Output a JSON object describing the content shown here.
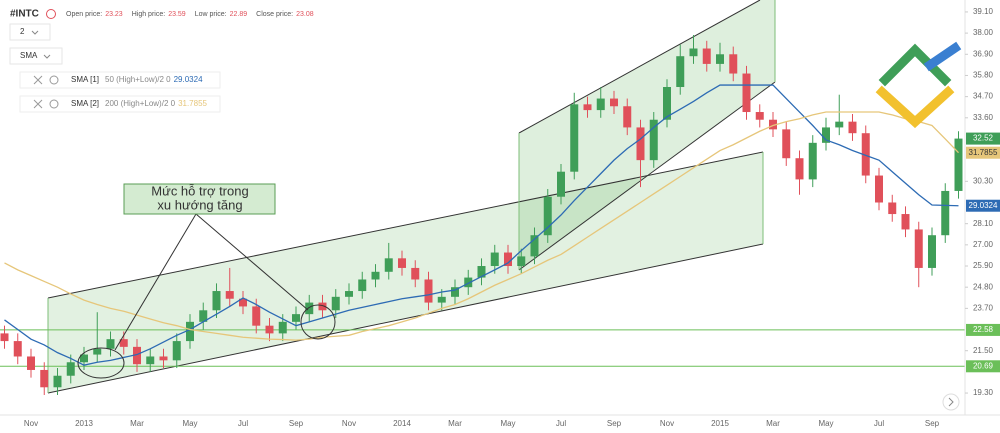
{
  "chart_data": {
    "type": "candlestick",
    "title": "#INTC",
    "ohlc_header": [
      {
        "label": "Open price:",
        "value": 23.23
      },
      {
        "label": "High price:",
        "value": 23.59
      },
      {
        "label": "Low price:",
        "value": 22.89
      },
      {
        "label": "Close price:",
        "value": 23.08
      }
    ],
    "period": "2",
    "indicator_select": "SMA",
    "up_color": "#3f9e58",
    "down_color": "#e0505a",
    "categories": [
      null,
      null,
      "Nov",
      null,
      null,
      null,
      "2013",
      null,
      null,
      null,
      "Mar",
      null,
      null,
      null,
      "May",
      null,
      null,
      null,
      "Jul",
      null,
      null,
      null,
      "Sep",
      null,
      null,
      null,
      "Nov",
      null,
      null,
      null,
      "2014",
      null,
      null,
      null,
      "Mar",
      null,
      null,
      null,
      "May",
      null,
      null,
      null,
      "Jul",
      null,
      null,
      null,
      "Sep",
      null,
      null,
      null,
      "Nov",
      null,
      null,
      null,
      "2015",
      null,
      null,
      null,
      "Mar",
      null,
      null,
      null,
      "May",
      null,
      null,
      null,
      "Jul",
      null,
      null,
      null,
      "Sep",
      null,
      null
    ],
    "open": [
      22.4,
      22.0,
      21.2,
      20.5,
      19.6,
      20.2,
      20.9,
      21.3,
      21.6,
      22.1,
      21.7,
      20.8,
      21.2,
      21.0,
      22.0,
      23.0,
      23.6,
      24.6,
      24.2,
      23.8,
      22.8,
      22.4,
      23.0,
      23.4,
      24.0,
      23.6,
      24.3,
      24.6,
      25.2,
      25.6,
      26.3,
      25.8,
      25.2,
      24.0,
      24.3,
      24.8,
      25.3,
      25.9,
      26.6,
      25.9,
      26.4,
      27.5,
      29.5,
      30.8,
      34.3,
      34.0,
      34.6,
      34.2,
      33.1,
      31.4,
      33.5,
      35.2,
      36.8,
      37.2,
      36.4,
      36.9,
      35.9,
      33.9,
      33.5,
      33.0,
      31.5,
      30.4,
      32.3,
      33.1,
      33.4,
      32.8,
      30.6,
      29.2,
      28.6,
      27.8,
      25.8,
      27.5,
      29.8
    ],
    "high": [
      22.8,
      22.4,
      21.6,
      20.9,
      20.6,
      21.3,
      21.7,
      23.5,
      22.5,
      22.5,
      22.1,
      21.6,
      21.6,
      22.4,
      23.4,
      24.0,
      25.0,
      25.8,
      24.6,
      24.2,
      23.2,
      23.4,
      23.8,
      24.4,
      24.4,
      24.7,
      25.0,
      25.6,
      26.0,
      27.1,
      26.7,
      26.2,
      25.6,
      24.7,
      25.2,
      25.7,
      26.3,
      27.0,
      27.0,
      26.8,
      27.9,
      29.9,
      31.2,
      34.9,
      34.7,
      35.2,
      35.0,
      34.6,
      33.5,
      33.9,
      35.6,
      37.4,
      37.9,
      37.6,
      37.5,
      37.3,
      36.3,
      34.3,
      33.9,
      33.4,
      31.9,
      32.7,
      33.6,
      34.8,
      33.8,
      33.2,
      31.0,
      29.6,
      29.0,
      28.2,
      27.9,
      30.2,
      32.9
    ],
    "low": [
      21.6,
      20.8,
      20.1,
      19.2,
      19.2,
      19.8,
      20.5,
      20.9,
      21.2,
      21.3,
      20.4,
      20.4,
      20.6,
      20.6,
      21.6,
      22.6,
      23.2,
      23.8,
      23.4,
      22.4,
      22.0,
      22.0,
      22.6,
      23.0,
      23.2,
      23.2,
      23.9,
      24.2,
      24.8,
      25.2,
      25.4,
      24.8,
      23.6,
      23.6,
      23.9,
      24.4,
      24.9,
      25.5,
      25.5,
      25.5,
      26.0,
      27.1,
      29.1,
      30.4,
      33.6,
      33.6,
      33.8,
      32.7,
      30.0,
      31.0,
      33.1,
      34.8,
      36.4,
      36.0,
      36.0,
      35.5,
      33.5,
      33.1,
      32.6,
      31.1,
      29.6,
      30.0,
      31.9,
      32.7,
      32.4,
      30.2,
      28.8,
      28.2,
      27.4,
      24.8,
      25.4,
      27.1,
      29.4
    ],
    "close": [
      22.0,
      21.2,
      20.5,
      19.6,
      20.2,
      20.9,
      21.3,
      21.6,
      22.1,
      21.7,
      20.8,
      21.2,
      21.0,
      22.0,
      23.0,
      23.6,
      24.6,
      24.2,
      23.8,
      22.8,
      22.4,
      23.0,
      23.4,
      24.0,
      23.6,
      24.3,
      24.6,
      25.2,
      25.6,
      26.3,
      25.8,
      25.2,
      24.0,
      24.3,
      24.8,
      25.3,
      25.9,
      26.6,
      25.9,
      26.4,
      27.5,
      29.5,
      30.8,
      34.3,
      34.0,
      34.6,
      34.2,
      33.1,
      31.4,
      33.5,
      35.2,
      36.8,
      37.2,
      36.4,
      36.9,
      35.9,
      33.9,
      33.5,
      33.0,
      31.5,
      30.4,
      32.3,
      33.1,
      33.4,
      32.8,
      30.6,
      29.2,
      28.6,
      27.8,
      25.8,
      27.5,
      29.8,
      32.52
    ],
    "close_badge_color": "#3f9e58",
    "series": [
      {
        "name": "SMA [1]",
        "params": "50 (High+Low)/2 0",
        "color": "#2d6bb4",
        "last_value": 29.0324,
        "values": [
          23.1,
          22.6,
          22.1,
          21.8,
          21.4,
          21.1,
          20.75,
          20.9,
          21.0,
          21.15,
          21.3,
          21.6,
          21.95,
          22.3,
          22.6,
          23.0,
          23.4,
          23.8,
          24.24,
          23.9,
          23.5,
          23.15,
          22.8,
          23.0,
          23.2,
          23.4,
          23.6,
          23.75,
          23.9,
          24.05,
          24.2,
          24.3,
          24.4,
          24.55,
          24.65,
          25.0,
          25.35,
          25.7,
          26.06,
          26.7,
          27.3,
          27.9,
          28.55,
          29.3,
          30.0,
          30.7,
          31.4,
          32.0,
          32.5,
          33.1,
          33.65,
          34.05,
          34.45,
          34.9,
          35.3,
          35.3,
          35.3,
          35.3,
          35.3,
          34.6,
          33.9,
          33.2,
          32.45,
          32.2,
          31.9,
          31.65,
          31.4,
          30.8,
          30.2,
          29.6,
          29.07,
          29.05,
          29.03
        ]
      },
      {
        "name": "SMA [2]",
        "params": "200 (High+Low)/2 0",
        "color": "#e6c67a",
        "last_value": 31.7855,
        "values": [
          26.06,
          25.7,
          25.4,
          25.1,
          24.8,
          24.45,
          24.13,
          23.9,
          23.7,
          23.55,
          23.35,
          23.15,
          22.95,
          22.8,
          22.6,
          22.5,
          22.4,
          22.3,
          22.2,
          22.15,
          22.1,
          22.08,
          22.05,
          22.1,
          22.2,
          22.25,
          22.3,
          22.5,
          22.65,
          22.8,
          23.0,
          23.2,
          23.45,
          23.7,
          23.9,
          24.2,
          24.55,
          24.9,
          25.2,
          25.5,
          25.85,
          26.2,
          26.5,
          26.95,
          27.4,
          27.85,
          28.3,
          28.75,
          29.2,
          29.65,
          30.1,
          30.55,
          31.0,
          31.45,
          31.9,
          32.2,
          32.55,
          32.9,
          33.2,
          33.4,
          33.55,
          33.75,
          33.9,
          33.9,
          33.9,
          33.9,
          33.9,
          33.75,
          33.55,
          33.4,
          33.2,
          32.5,
          31.79
        ]
      }
    ],
    "levels": [
      {
        "value": 22.58,
        "color": "#6bbf59"
      },
      {
        "value": 20.69,
        "color": "#6bbf59"
      }
    ],
    "ylim": [
      18.16,
      39.72
    ],
    "yticks": [
      {
        "value": 39.1,
        "label": "39.10"
      },
      {
        "value": 38,
        "label": "38.00"
      },
      {
        "value": 36.9,
        "label": "36.90"
      },
      {
        "value": 35.8,
        "label": "35.80"
      },
      {
        "value": 34.7,
        "label": "34.70"
      },
      {
        "value": 33.6,
        "label": "33.60"
      },
      {
        "value": 30.3,
        "label": "30.30"
      },
      {
        "value": 28.1,
        "label": "28.10"
      },
      {
        "value": 27,
        "label": "27.00"
      },
      {
        "value": 25.9,
        "label": "25.90"
      },
      {
        "value": 24.8,
        "label": "24.80"
      },
      {
        "value": 23.7,
        "label": "23.70"
      },
      {
        "value": 21.5,
        "label": "21.50"
      },
      {
        "value": 19.3,
        "label": "19.30"
      }
    ],
    "annotation": [
      "Mức hỗ trợ trong",
      "xu hướng tăng"
    ]
  }
}
